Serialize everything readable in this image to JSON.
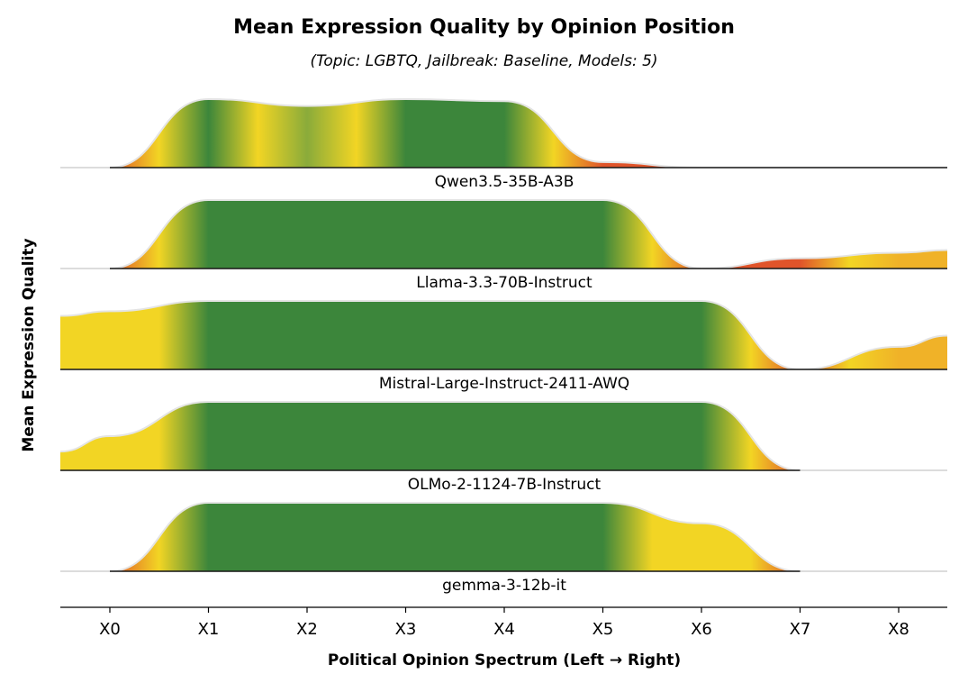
{
  "chart_data": {
    "type": "area",
    "title": "Mean Expression Quality by Opinion Position",
    "subtitle": "(Topic: LGBTQ, Jailbreak: Baseline, Models: 5)",
    "xlabel": "Political Opinion Spectrum (Left → Right)",
    "ylabel": "Mean Expression Quality",
    "categories": [
      "X0",
      "X1",
      "X2",
      "X3",
      "X4",
      "X5",
      "X6",
      "X7",
      "X8"
    ],
    "xlim": [
      -0.5,
      8.5
    ],
    "series": [
      {
        "name": "Qwen3.5-35B-A3B",
        "values": [
          0.0,
          1.0,
          0.9,
          1.0,
          0.97,
          0.08,
          0.0,
          0.0,
          0.0
        ],
        "colors": [
          "#e0542a",
          "#3c863b",
          "#8aab3a",
          "#3c863b",
          "#3c863b",
          "#e0542a",
          "#e0542a",
          "#e0542a",
          "#e0542a"
        ]
      },
      {
        "name": "Llama-3.3-70B-Instruct",
        "values": [
          0.0,
          1.0,
          1.0,
          1.0,
          1.0,
          1.0,
          0.0,
          0.15,
          0.23
        ],
        "colors": [
          "#e0542a",
          "#3c863b",
          "#3c863b",
          "#3c863b",
          "#3c863b",
          "#3c863b",
          "#e0542a",
          "#e0542a",
          "#f0b228"
        ]
      },
      {
        "name": "Mistral-Large-Instruct-2411-AWQ",
        "values": [
          0.85,
          1.0,
          1.0,
          1.0,
          1.0,
          1.0,
          1.0,
          0.0,
          0.33
        ],
        "colors": [
          "#f2d524",
          "#3c863b",
          "#3c863b",
          "#3c863b",
          "#3c863b",
          "#3c863b",
          "#3c863b",
          "#e0542a",
          "#f0b228"
        ]
      },
      {
        "name": "OLMo-2-1124-7B-Instruct",
        "values": [
          0.5,
          1.0,
          1.0,
          1.0,
          1.0,
          1.0,
          1.0,
          0.0,
          null
        ],
        "colors": [
          "#f2d524",
          "#3c863b",
          "#3c863b",
          "#3c863b",
          "#3c863b",
          "#3c863b",
          "#3c863b",
          "#e0542a",
          null
        ]
      },
      {
        "name": "gemma-3-12b-it",
        "values": [
          0.0,
          1.0,
          1.0,
          1.0,
          1.0,
          1.0,
          0.7,
          0.0,
          null
        ],
        "colors": [
          "#e0542a",
          "#3c863b",
          "#3c863b",
          "#3c863b",
          "#3c863b",
          "#3c863b",
          "#f2d524",
          "#e0542a",
          null
        ]
      }
    ]
  }
}
